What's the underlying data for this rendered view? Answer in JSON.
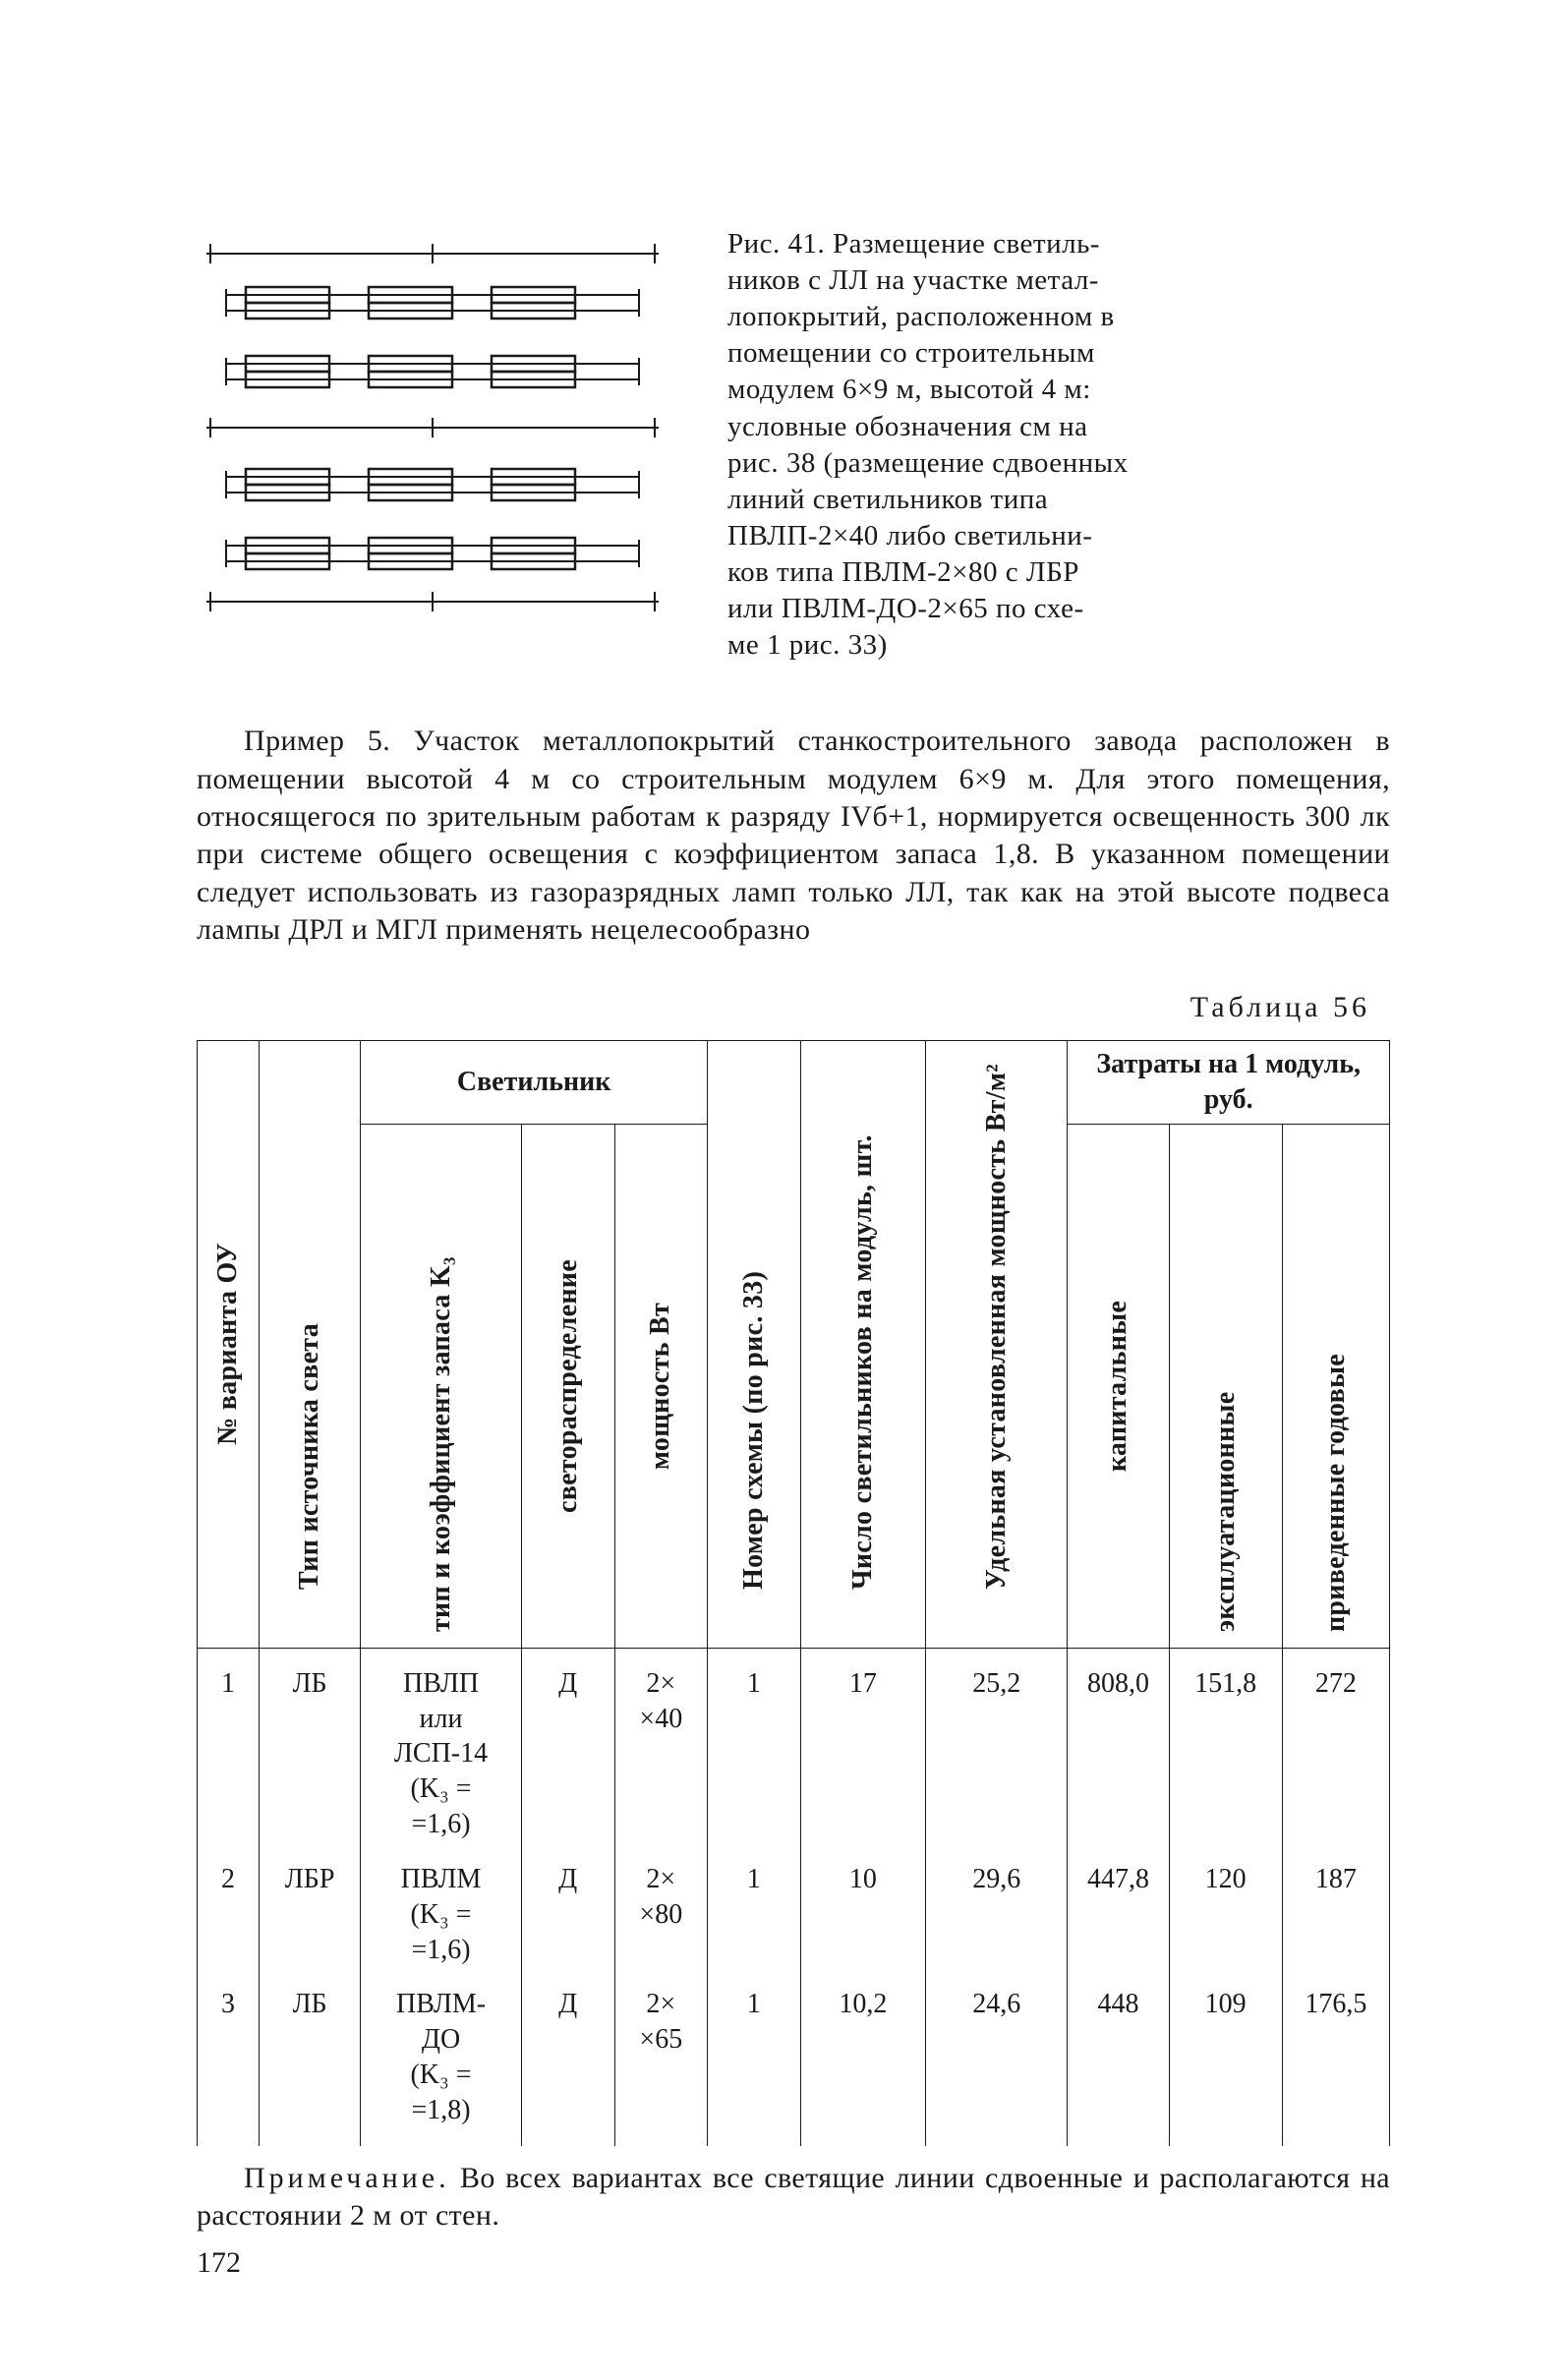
{
  "figure": {
    "caption_lines": [
      "Рис. 41. Размещение светиль-",
      "ников с ЛЛ на участке метал-",
      "лопокрытий, расположенном в",
      "помещении со строительным",
      "модулем 6×9 м, высотой 4 м:",
      "условные обозначения см на",
      "рис. 38 (размещение сдвоенных",
      "линий светильников типа",
      "ПВЛП-2×40 либо светильни-",
      "ков типа ПВЛМ-2×80 с ЛБР",
      "или ПВЛМ-ДО-2×65 по схе-",
      "ме 1 рис. 33)"
    ]
  },
  "body_paragraph": "Пример 5. Участок металлопокрытий станкостроительного завода расположен в помещении высотой 4 м со строительным модулем 6×9 м. Для этого помещения, относящегося по зрительным работам к разряду IVб+1, нормируется освещенность 300 лк при системе общего освещения с коэффициентом запаса 1,8. В указанном помещении следует использовать из газоразрядных ламп только ЛЛ, так как на этой высоте подвеса лампы ДРЛ и МГЛ применять нецелесообразно",
  "table_label": "Таблица 56",
  "headers": {
    "group_fixture": "Светильник",
    "group_costs": "Затраты на 1 модуль, руб.",
    "col_variant": "№ варианта ОУ",
    "col_source": "Тип источника света",
    "col_type_kz": "тип и коэффициент запаса K₃",
    "col_distribution": "светораспределение",
    "col_power": "мощность Вт",
    "col_scheme": "Номер схемы (по рис. 33)",
    "col_count": "Число светильников на модуль, шт.",
    "col_specific": "Удельная установленная мощность Вт/м²",
    "col_capital": "капитальные",
    "col_operating": "эксплуатационные",
    "col_reduced": "приведенные годовые"
  },
  "rows": [
    {
      "n": "1",
      "source": "ЛБ",
      "type_kz_lines": [
        "ПВЛП",
        "или",
        "ЛСП-14",
        "(K₃ =",
        "=1,6)"
      ],
      "dist": "Д",
      "power_lines": [
        "2×",
        "×40"
      ],
      "scheme": "1",
      "count": "17",
      "specific": "25,2",
      "capital": "808,0",
      "operating": "151,8",
      "reduced": "272"
    },
    {
      "n": "2",
      "source": "ЛБР",
      "type_kz_lines": [
        "ПВЛМ",
        "(K₃ =",
        "=1,6)"
      ],
      "dist": "Д",
      "power_lines": [
        "2×",
        "×80"
      ],
      "scheme": "1",
      "count": "10",
      "specific": "29,6",
      "capital": "447,8",
      "operating": "120",
      "reduced": "187"
    },
    {
      "n": "3",
      "source": "ЛБ",
      "type_kz_lines": [
        "ПВЛМ-",
        "ДО",
        "(K₃ =",
        "=1,8)"
      ],
      "dist": "Д",
      "power_lines": [
        "2×",
        "×65"
      ],
      "scheme": "1",
      "count": "10,2",
      "specific": "24,6",
      "capital": "448",
      "operating": "109",
      "reduced": "176,5"
    }
  ],
  "note_label": "Примечание.",
  "note_text": "Во всех вариантах все светящие линии сдвоенные и располагаются на расстоянии 2 м от стен.",
  "page_number": "172",
  "col_widths_pct": [
    5.2,
    8.5,
    13.5,
    7.8,
    7.8,
    7.8,
    10.5,
    11.9,
    8.5,
    9.5,
    9
  ]
}
